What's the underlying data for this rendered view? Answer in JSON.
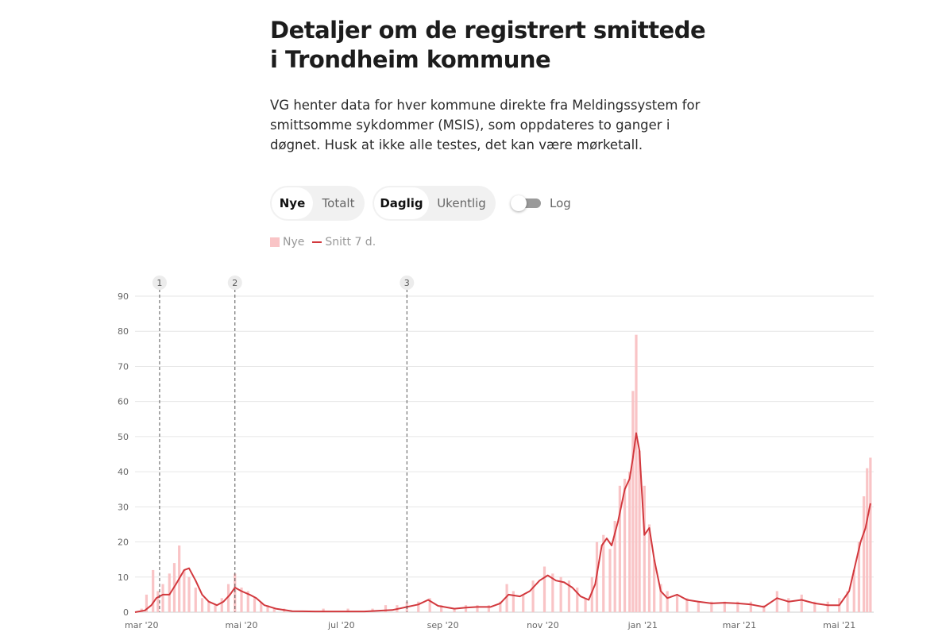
{
  "header": {
    "title": "Detaljer om de registrert smittede i Trondheim kommune",
    "intro": "VG henter data for hver kommune direkte fra Meldingssystem for smittsomme sykdommer (MSIS), som oppdateres to ganger i døgnet. Husk at ikke alle testes, det kan være mørketall."
  },
  "controls": {
    "mode": {
      "options": [
        "Nye",
        "Totalt"
      ],
      "selected": "Nye"
    },
    "interval": {
      "options": [
        "Daglig",
        "Ukentlig"
      ],
      "selected": "Daglig"
    },
    "log_label": "Log",
    "log_on": false
  },
  "colors": {
    "bar": "#f9c4c6",
    "line": "#d2383d",
    "grid": "#e6e6e6",
    "annotation": "#555555"
  },
  "chart_data": {
    "type": "bar",
    "title": "",
    "xlabel": "",
    "ylabel": "",
    "ylim": [
      0,
      90
    ],
    "yticks": [
      0,
      10,
      20,
      30,
      40,
      50,
      60,
      70,
      80,
      90
    ],
    "x_start": "2020-02-26",
    "x_end": "2021-05-22",
    "xticks": [
      {
        "date": "2020-03-01",
        "label": "mar '20"
      },
      {
        "date": "2020-05-01",
        "label": "mai '20"
      },
      {
        "date": "2020-07-01",
        "label": "jul '20"
      },
      {
        "date": "2020-09-01",
        "label": "sep '20"
      },
      {
        "date": "2020-11-01",
        "label": "nov '20"
      },
      {
        "date": "2021-01-01",
        "label": "jan '21"
      },
      {
        "date": "2021-03-01",
        "label": "mar '21"
      },
      {
        "date": "2021-05-01",
        "label": "mai '21"
      }
    ],
    "annotations": [
      {
        "label": "1",
        "date": "2020-03-12"
      },
      {
        "label": "2",
        "date": "2020-04-27"
      },
      {
        "label": "3",
        "date": "2020-08-10"
      }
    ],
    "legend": [
      "Nye",
      "Snitt 7 d."
    ],
    "series": [
      {
        "name": "Nye",
        "kind": "bar",
        "points": [
          [
            "2020-03-01",
            1
          ],
          [
            "2020-03-04",
            5
          ],
          [
            "2020-03-08",
            12
          ],
          [
            "2020-03-11",
            6
          ],
          [
            "2020-03-14",
            8
          ],
          [
            "2020-03-18",
            11
          ],
          [
            "2020-03-21",
            14
          ],
          [
            "2020-03-24",
            19
          ],
          [
            "2020-03-27",
            12
          ],
          [
            "2020-03-30",
            10
          ],
          [
            "2020-04-03",
            7
          ],
          [
            "2020-04-07",
            4
          ],
          [
            "2020-04-11",
            3
          ],
          [
            "2020-04-15",
            2
          ],
          [
            "2020-04-19",
            4
          ],
          [
            "2020-04-23",
            8
          ],
          [
            "2020-04-27",
            11
          ],
          [
            "2020-05-01",
            7
          ],
          [
            "2020-05-05",
            6
          ],
          [
            "2020-05-09",
            4
          ],
          [
            "2020-05-13",
            3
          ],
          [
            "2020-05-17",
            2
          ],
          [
            "2020-05-21",
            1
          ],
          [
            "2020-05-27",
            1
          ],
          [
            "2020-06-05",
            0
          ],
          [
            "2020-06-20",
            1
          ],
          [
            "2020-07-05",
            1
          ],
          [
            "2020-07-20",
            1
          ],
          [
            "2020-07-28",
            2
          ],
          [
            "2020-08-04",
            2
          ],
          [
            "2020-08-10",
            3
          ],
          [
            "2020-08-17",
            3
          ],
          [
            "2020-08-24",
            4
          ],
          [
            "2020-08-31",
            2
          ],
          [
            "2020-09-08",
            1
          ],
          [
            "2020-09-15",
            2
          ],
          [
            "2020-09-22",
            2
          ],
          [
            "2020-09-29",
            2
          ],
          [
            "2020-10-06",
            3
          ],
          [
            "2020-10-10",
            8
          ],
          [
            "2020-10-14",
            6
          ],
          [
            "2020-10-20",
            5
          ],
          [
            "2020-10-26",
            9
          ],
          [
            "2020-11-02",
            13
          ],
          [
            "2020-11-07",
            11
          ],
          [
            "2020-11-12",
            10
          ],
          [
            "2020-11-17",
            9
          ],
          [
            "2020-11-22",
            7
          ],
          [
            "2020-11-27",
            4
          ],
          [
            "2020-12-01",
            10
          ],
          [
            "2020-12-04",
            20
          ],
          [
            "2020-12-08",
            22
          ],
          [
            "2020-12-12",
            18
          ],
          [
            "2020-12-15",
            26
          ],
          [
            "2020-12-18",
            36
          ],
          [
            "2020-12-21",
            38
          ],
          [
            "2020-12-24",
            40
          ],
          [
            "2020-12-26",
            63
          ],
          [
            "2020-12-28",
            79
          ],
          [
            "2020-12-30",
            46
          ],
          [
            "2021-01-02",
            36
          ],
          [
            "2021-01-05",
            25
          ],
          [
            "2021-01-08",
            15
          ],
          [
            "2021-01-12",
            8
          ],
          [
            "2021-01-16",
            6
          ],
          [
            "2021-01-22",
            5
          ],
          [
            "2021-01-28",
            4
          ],
          [
            "2021-02-04",
            3
          ],
          [
            "2021-02-12",
            3
          ],
          [
            "2021-02-20",
            3
          ],
          [
            "2021-02-28",
            3
          ],
          [
            "2021-03-08",
            3
          ],
          [
            "2021-03-16",
            2
          ],
          [
            "2021-03-24",
            6
          ],
          [
            "2021-03-31",
            4
          ],
          [
            "2021-04-08",
            5
          ],
          [
            "2021-04-16",
            3
          ],
          [
            "2021-04-24",
            3
          ],
          [
            "2021-05-01",
            4
          ],
          [
            "2021-05-06",
            6
          ],
          [
            "2021-05-10",
            12
          ],
          [
            "2021-05-13",
            20
          ],
          [
            "2021-05-16",
            33
          ],
          [
            "2021-05-18",
            41
          ],
          [
            "2021-05-20",
            44
          ]
        ]
      },
      {
        "name": "Snitt 7 d.",
        "kind": "line",
        "points": [
          [
            "2020-02-26",
            0
          ],
          [
            "2020-03-03",
            0.5
          ],
          [
            "2020-03-07",
            2
          ],
          [
            "2020-03-10",
            4
          ],
          [
            "2020-03-14",
            5
          ],
          [
            "2020-03-18",
            5
          ],
          [
            "2020-03-22",
            8
          ],
          [
            "2020-03-27",
            12
          ],
          [
            "2020-03-30",
            12.5
          ],
          [
            "2020-04-03",
            9
          ],
          [
            "2020-04-07",
            5
          ],
          [
            "2020-04-11",
            3
          ],
          [
            "2020-04-16",
            2
          ],
          [
            "2020-04-20",
            3
          ],
          [
            "2020-04-24",
            5
          ],
          [
            "2020-04-27",
            7
          ],
          [
            "2020-05-01",
            6
          ],
          [
            "2020-05-06",
            5
          ],
          [
            "2020-05-10",
            4
          ],
          [
            "2020-05-15",
            2
          ],
          [
            "2020-05-22",
            1
          ],
          [
            "2020-06-01",
            0.3
          ],
          [
            "2020-06-15",
            0.2
          ],
          [
            "2020-07-01",
            0.2
          ],
          [
            "2020-07-15",
            0.2
          ],
          [
            "2020-08-01",
            0.6
          ],
          [
            "2020-08-10",
            1.5
          ],
          [
            "2020-08-17",
            2.2
          ],
          [
            "2020-08-23",
            3.5
          ],
          [
            "2020-08-29",
            1.8
          ],
          [
            "2020-09-08",
            1
          ],
          [
            "2020-09-15",
            1.3
          ],
          [
            "2020-09-22",
            1.5
          ],
          [
            "2020-09-30",
            1.5
          ],
          [
            "2020-10-06",
            2.5
          ],
          [
            "2020-10-11",
            5
          ],
          [
            "2020-10-18",
            4.5
          ],
          [
            "2020-10-24",
            6
          ],
          [
            "2020-10-30",
            9
          ],
          [
            "2020-11-04",
            10.5
          ],
          [
            "2020-11-09",
            9
          ],
          [
            "2020-11-14",
            8.5
          ],
          [
            "2020-11-19",
            7
          ],
          [
            "2020-11-24",
            4.5
          ],
          [
            "2020-11-29",
            3.5
          ],
          [
            "2020-12-03",
            8
          ],
          [
            "2020-12-07",
            19
          ],
          [
            "2020-12-10",
            21
          ],
          [
            "2020-12-13",
            19
          ],
          [
            "2020-12-17",
            26
          ],
          [
            "2020-12-21",
            35
          ],
          [
            "2020-12-24",
            38
          ],
          [
            "2020-12-26",
            44
          ],
          [
            "2020-12-28",
            51
          ],
          [
            "2020-12-30",
            46
          ],
          [
            "2021-01-02",
            22
          ],
          [
            "2021-01-05",
            24
          ],
          [
            "2021-01-08",
            15
          ],
          [
            "2021-01-12",
            6
          ],
          [
            "2021-01-16",
            4
          ],
          [
            "2021-01-22",
            5
          ],
          [
            "2021-01-28",
            3.5
          ],
          [
            "2021-02-04",
            3
          ],
          [
            "2021-02-12",
            2.5
          ],
          [
            "2021-02-20",
            2.7
          ],
          [
            "2021-02-28",
            2.5
          ],
          [
            "2021-03-08",
            2.2
          ],
          [
            "2021-03-16",
            1.5
          ],
          [
            "2021-03-24",
            4
          ],
          [
            "2021-03-31",
            3
          ],
          [
            "2021-04-08",
            3.5
          ],
          [
            "2021-04-16",
            2.5
          ],
          [
            "2021-04-24",
            2
          ],
          [
            "2021-05-01",
            2
          ],
          [
            "2021-05-07",
            6
          ],
          [
            "2021-05-11",
            14
          ],
          [
            "2021-05-14",
            20
          ],
          [
            "2021-05-17",
            24
          ],
          [
            "2021-05-20",
            31
          ]
        ]
      }
    ]
  }
}
